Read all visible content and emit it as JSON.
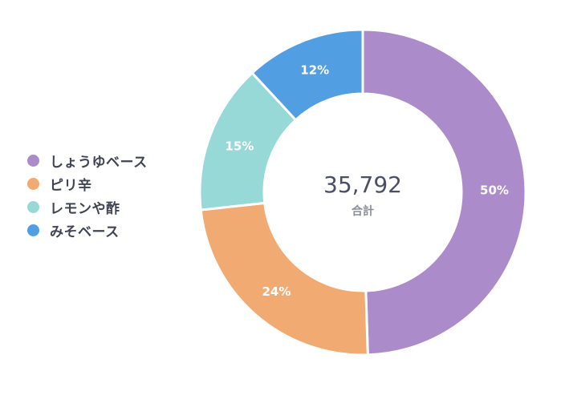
{
  "chart_data": {
    "type": "pie",
    "categories": [
      "しょうゆベース",
      "ピリ辛",
      "レモンや酢",
      "みそベース"
    ],
    "values": [
      50,
      24,
      15,
      12
    ],
    "percent_labels": [
      "50%",
      "24%",
      "15%",
      "12%"
    ],
    "colors": [
      "#ac8bcb",
      "#f0aa72",
      "#97d9d7",
      "#519ee3"
    ],
    "total_value": "35,792",
    "total_caption": "合計",
    "legend_position": "left",
    "style": "donut"
  }
}
